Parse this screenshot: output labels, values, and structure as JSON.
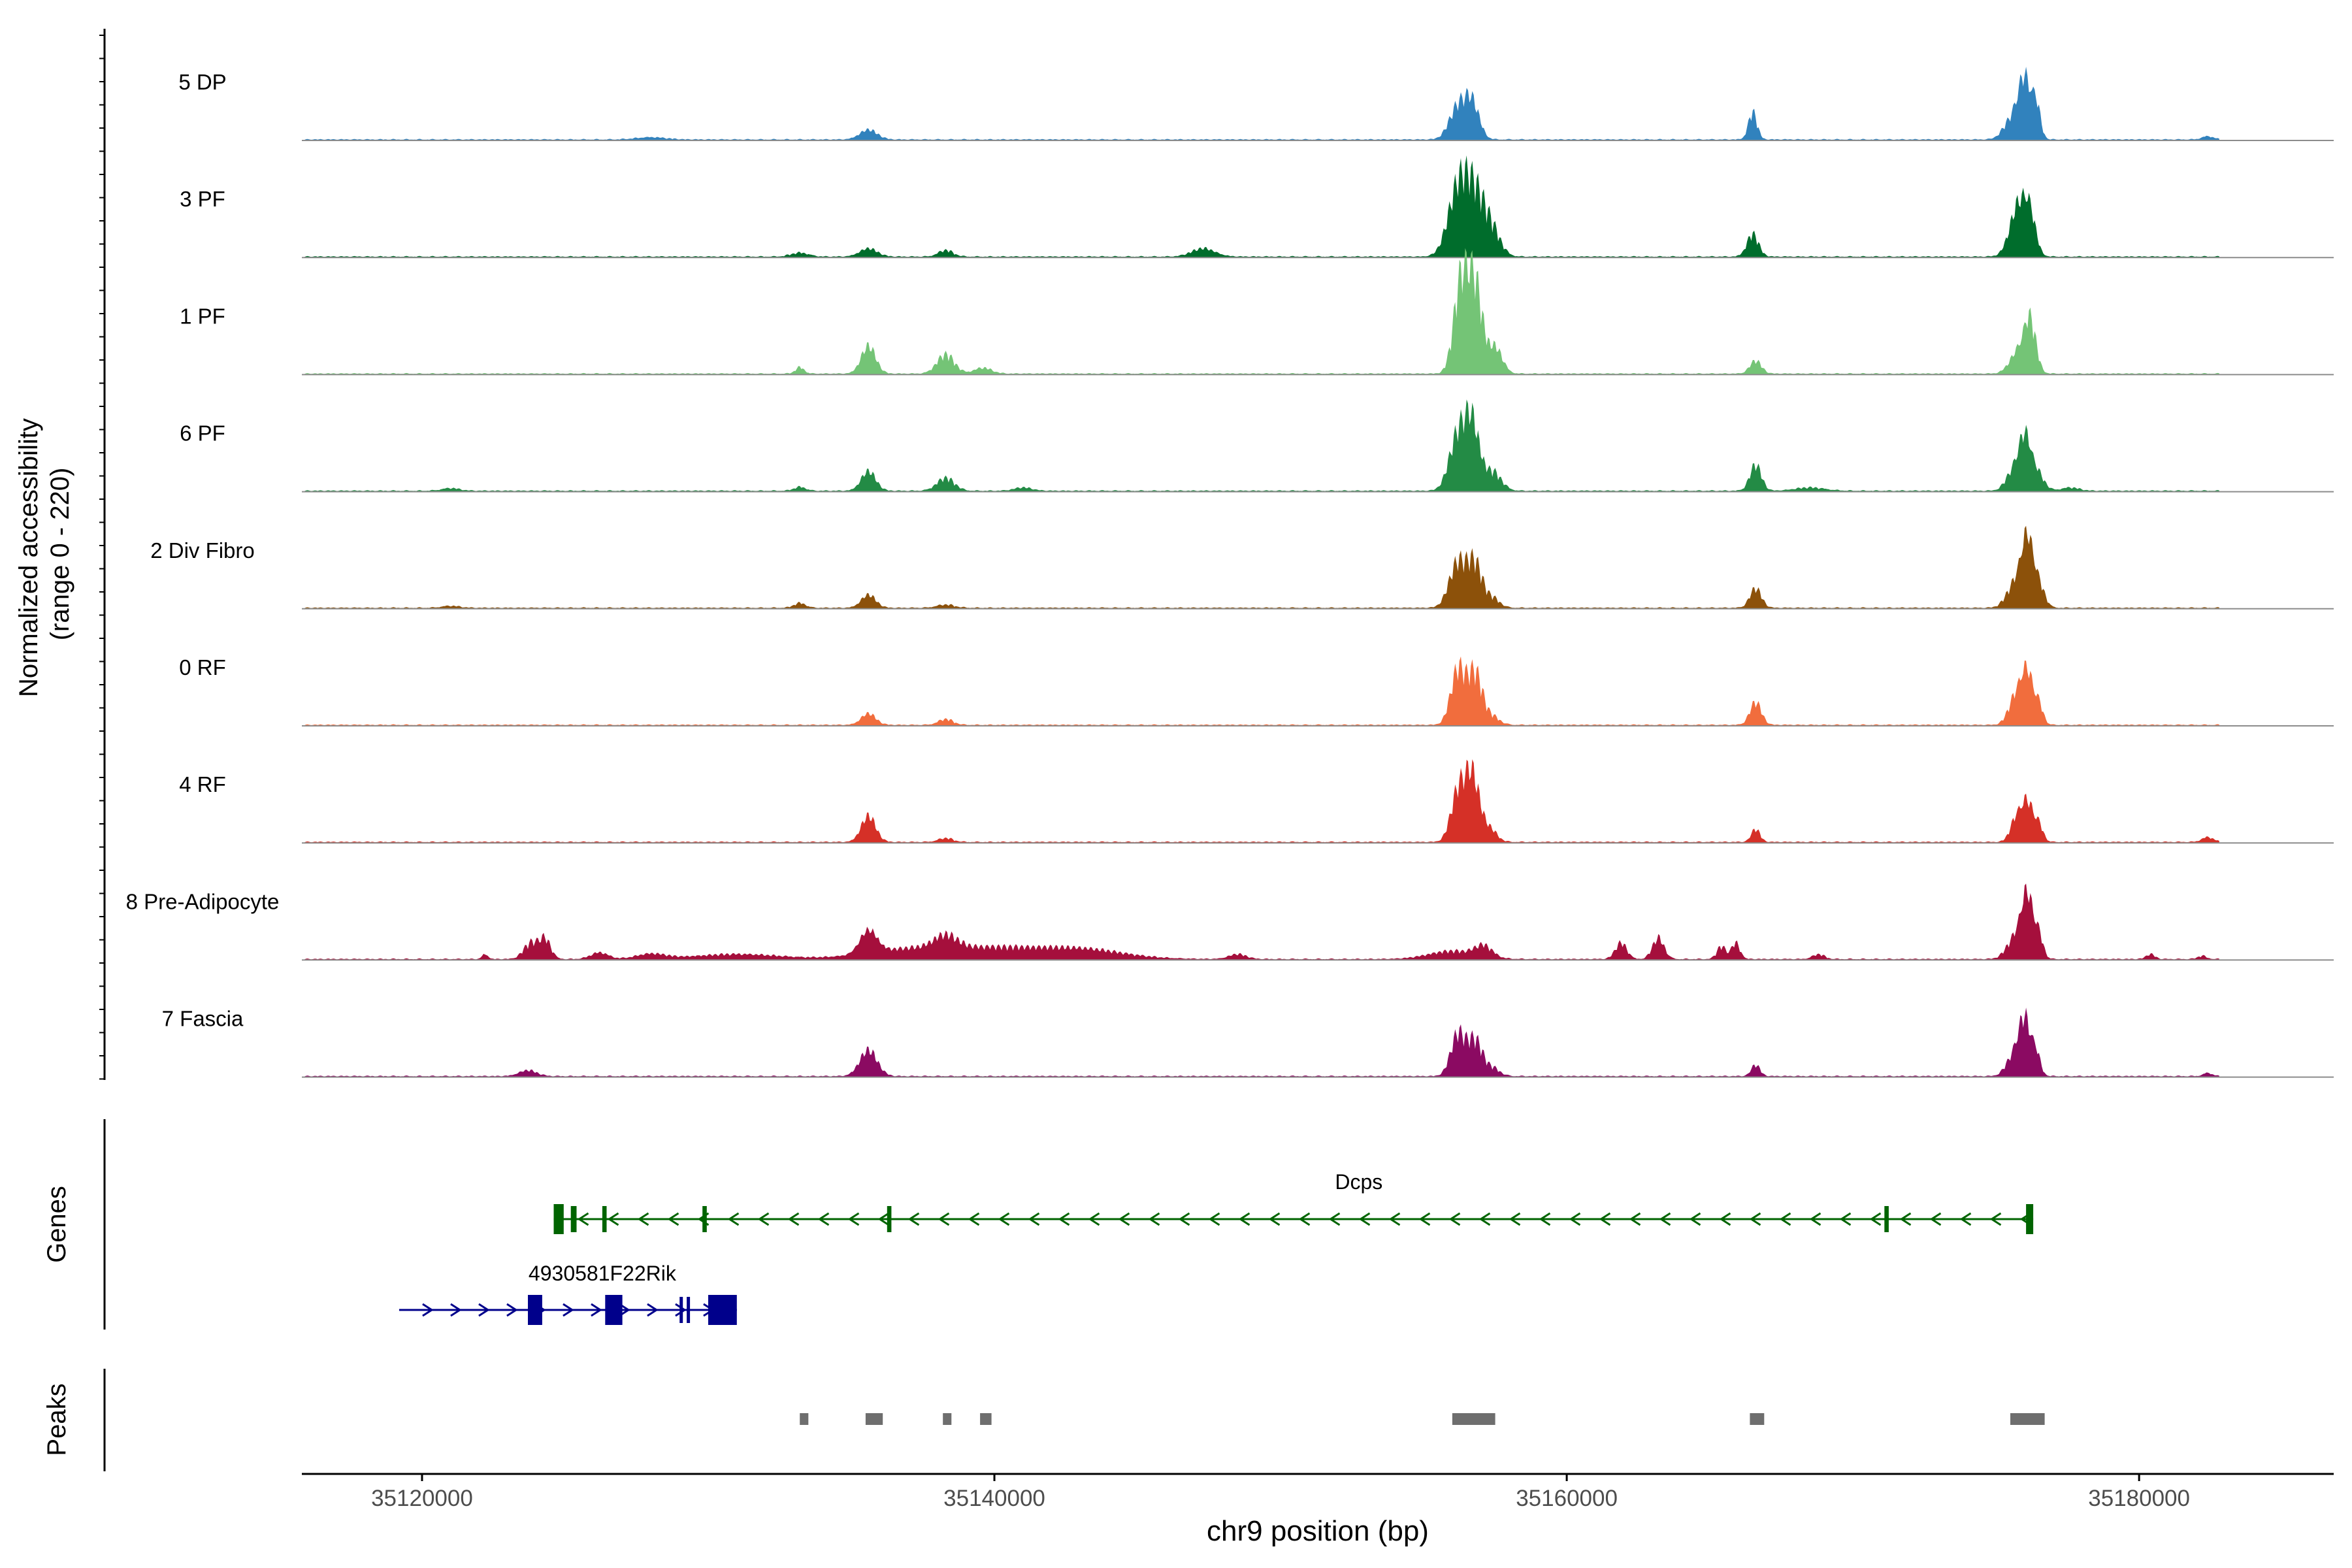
{
  "chart_data": {
    "type": "area",
    "title": "",
    "xlabel": "chr9 position (bp)",
    "ylabel_line1": "Normalized accessibility",
    "ylabel_line2": "(range 0 - 220)",
    "ylim": [
      0,
      220
    ],
    "xlim": [
      35115800,
      35186800
    ],
    "xticks": [
      35120000,
      35140000,
      35160000,
      35180000
    ],
    "xtick_labels": [
      "35120000",
      "35140000",
      "35160000",
      "35180000"
    ],
    "section_labels": {
      "genes": "Genes",
      "peaks": "Peaks"
    },
    "series": [
      {
        "name": "5 DP",
        "color": "#3182BD",
        "baseline": 3,
        "peaks": [
          [
            35128000,
            7,
            500
          ],
          [
            35135600,
            30,
            300
          ],
          [
            35156200,
            100,
            300
          ],
          [
            35156700,
            105,
            250
          ],
          [
            35166500,
            85,
            150
          ],
          [
            35175600,
            70,
            300
          ],
          [
            35176000,
            170,
            200
          ],
          [
            35176400,
            110,
            150
          ],
          [
            35182400,
            10,
            200
          ]
        ]
      },
      {
        "name": "3 PF",
        "color": "#006D2C",
        "baseline": 3,
        "peaks": [
          [
            35133200,
            12,
            300
          ],
          [
            35135600,
            25,
            300
          ],
          [
            35138300,
            20,
            250
          ],
          [
            35147300,
            25,
            400
          ],
          [
            35156200,
            200,
            350
          ],
          [
            35156800,
            180,
            350
          ],
          [
            35157400,
            70,
            300
          ],
          [
            35166500,
            70,
            200
          ],
          [
            35175800,
            160,
            300
          ],
          [
            35176200,
            100,
            200
          ]
        ]
      },
      {
        "name": "1 PF",
        "color": "#74C476",
        "baseline": 3,
        "peaks": [
          [
            35133200,
            20,
            150
          ],
          [
            35135600,
            85,
            250
          ],
          [
            35138300,
            60,
            300
          ],
          [
            35139600,
            18,
            300
          ],
          [
            35156300,
            280,
            250
          ],
          [
            35156800,
            270,
            250
          ],
          [
            35157500,
            80,
            250
          ],
          [
            35166600,
            40,
            200
          ],
          [
            35175800,
            70,
            300
          ],
          [
            35176200,
            150,
            200
          ]
        ]
      },
      {
        "name": "6 PF",
        "color": "#238B45",
        "baseline": 3,
        "peaks": [
          [
            35121000,
            8,
            300
          ],
          [
            35133200,
            12,
            200
          ],
          [
            35135600,
            60,
            250
          ],
          [
            35138300,
            40,
            300
          ],
          [
            35141000,
            10,
            300
          ],
          [
            35156200,
            170,
            300
          ],
          [
            35156700,
            190,
            250
          ],
          [
            35157400,
            60,
            300
          ],
          [
            35166600,
            80,
            200
          ],
          [
            35168500,
            10,
            500
          ],
          [
            35175600,
            60,
            250
          ],
          [
            35176000,
            150,
            200
          ],
          [
            35176400,
            60,
            250
          ],
          [
            35177600,
            10,
            300
          ]
        ]
      },
      {
        "name": "2 Div Fibro",
        "color": "#8C510A",
        "baseline": 3,
        "peaks": [
          [
            35121000,
            6,
            300
          ],
          [
            35133200,
            15,
            200
          ],
          [
            35135600,
            40,
            250
          ],
          [
            35138300,
            10,
            300
          ],
          [
            35156200,
            140,
            300
          ],
          [
            35156800,
            130,
            250
          ],
          [
            35157400,
            30,
            250
          ],
          [
            35166600,
            60,
            200
          ],
          [
            35175700,
            80,
            300
          ],
          [
            35176100,
            190,
            200
          ],
          [
            35176500,
            70,
            200
          ]
        ]
      },
      {
        "name": "0 RF",
        "color": "#F16D3D",
        "baseline": 3,
        "peaks": [
          [
            35135600,
            35,
            250
          ],
          [
            35138300,
            18,
            250
          ],
          [
            35156200,
            170,
            250
          ],
          [
            35156800,
            160,
            250
          ],
          [
            35157400,
            25,
            250
          ],
          [
            35166600,
            70,
            200
          ],
          [
            35175700,
            90,
            250
          ],
          [
            35176100,
            150,
            200
          ],
          [
            35176500,
            60,
            150
          ]
        ]
      },
      {
        "name": "4 RF",
        "color": "#D53027",
        "baseline": 3,
        "peaks": [
          [
            35135600,
            80,
            250
          ],
          [
            35138300,
            12,
            250
          ],
          [
            35156200,
            150,
            250
          ],
          [
            35156700,
            200,
            250
          ],
          [
            35157300,
            40,
            250
          ],
          [
            35166600,
            40,
            150
          ],
          [
            35175700,
            70,
            200
          ],
          [
            35176100,
            120,
            200
          ],
          [
            35176500,
            50,
            150
          ],
          [
            35182400,
            15,
            200
          ]
        ]
      },
      {
        "name": "8 Pre-Adipocyte",
        "color": "#A50F3C",
        "baseline": 3,
        "peaks": [
          [
            35122200,
            15,
            100
          ],
          [
            35123800,
            50,
            250
          ],
          [
            35124300,
            60,
            200
          ],
          [
            35126200,
            20,
            300
          ],
          [
            35128000,
            15,
            500
          ],
          [
            35131000,
            15,
            1500
          ],
          [
            35135600,
            70,
            300
          ],
          [
            35137000,
            30,
            1500
          ],
          [
            35138300,
            40,
            400
          ],
          [
            35140000,
            30,
            1500
          ],
          [
            35143000,
            30,
            1500
          ],
          [
            35148500,
            15,
            300
          ],
          [
            35156000,
            25,
            800
          ],
          [
            35157100,
            35,
            300
          ],
          [
            35161900,
            50,
            200
          ],
          [
            35163200,
            65,
            200
          ],
          [
            35165400,
            40,
            150
          ],
          [
            35165900,
            50,
            150
          ],
          [
            35168800,
            15,
            200
          ],
          [
            35175700,
            70,
            300
          ],
          [
            35176100,
            180,
            200
          ],
          [
            35176500,
            70,
            150
          ],
          [
            35180400,
            15,
            150
          ],
          [
            35182200,
            10,
            150
          ]
        ]
      },
      {
        "name": "7 Fascia",
        "color": "#8B0A62",
        "baseline": 3,
        "peaks": [
          [
            35123700,
            18,
            300
          ],
          [
            35135600,
            80,
            300
          ],
          [
            35156200,
            130,
            250
          ],
          [
            35156800,
            110,
            250
          ],
          [
            35157400,
            25,
            250
          ],
          [
            35166600,
            35,
            150
          ],
          [
            35175600,
            60,
            250
          ],
          [
            35176000,
            170,
            200
          ],
          [
            35176400,
            70,
            150
          ],
          [
            35182400,
            10,
            150
          ]
        ]
      }
    ],
    "genes": [
      {
        "name": "Dcps",
        "strand": "-",
        "color": "#006400",
        "start": 35124600,
        "end": 35176300,
        "exons": [
          [
            35124600,
            35124950
          ],
          [
            35125200,
            35125400
          ],
          [
            35126300,
            35126450
          ],
          [
            35129800,
            35129950
          ],
          [
            35136250,
            35136400
          ],
          [
            35171100,
            35171250
          ],
          [
            35176050,
            35176300
          ]
        ]
      },
      {
        "name": "4930581F22Rik",
        "strand": "+",
        "color": "#00008B",
        "start": 35119200,
        "end": 35131000,
        "exons": [
          [
            35123700,
            35124200
          ],
          [
            35126400,
            35127000
          ],
          [
            35129000,
            35129050
          ],
          [
            35129250,
            35129300
          ],
          [
            35130000,
            35131000
          ]
        ]
      }
    ],
    "peaks": [
      [
        35133200,
        35133500
      ],
      [
        35135500,
        35136100
      ],
      [
        35138200,
        35138500
      ],
      [
        35139500,
        35139900
      ],
      [
        35156000,
        35157500
      ],
      [
        35166400,
        35166900
      ],
      [
        35175500,
        35176700
      ]
    ]
  }
}
